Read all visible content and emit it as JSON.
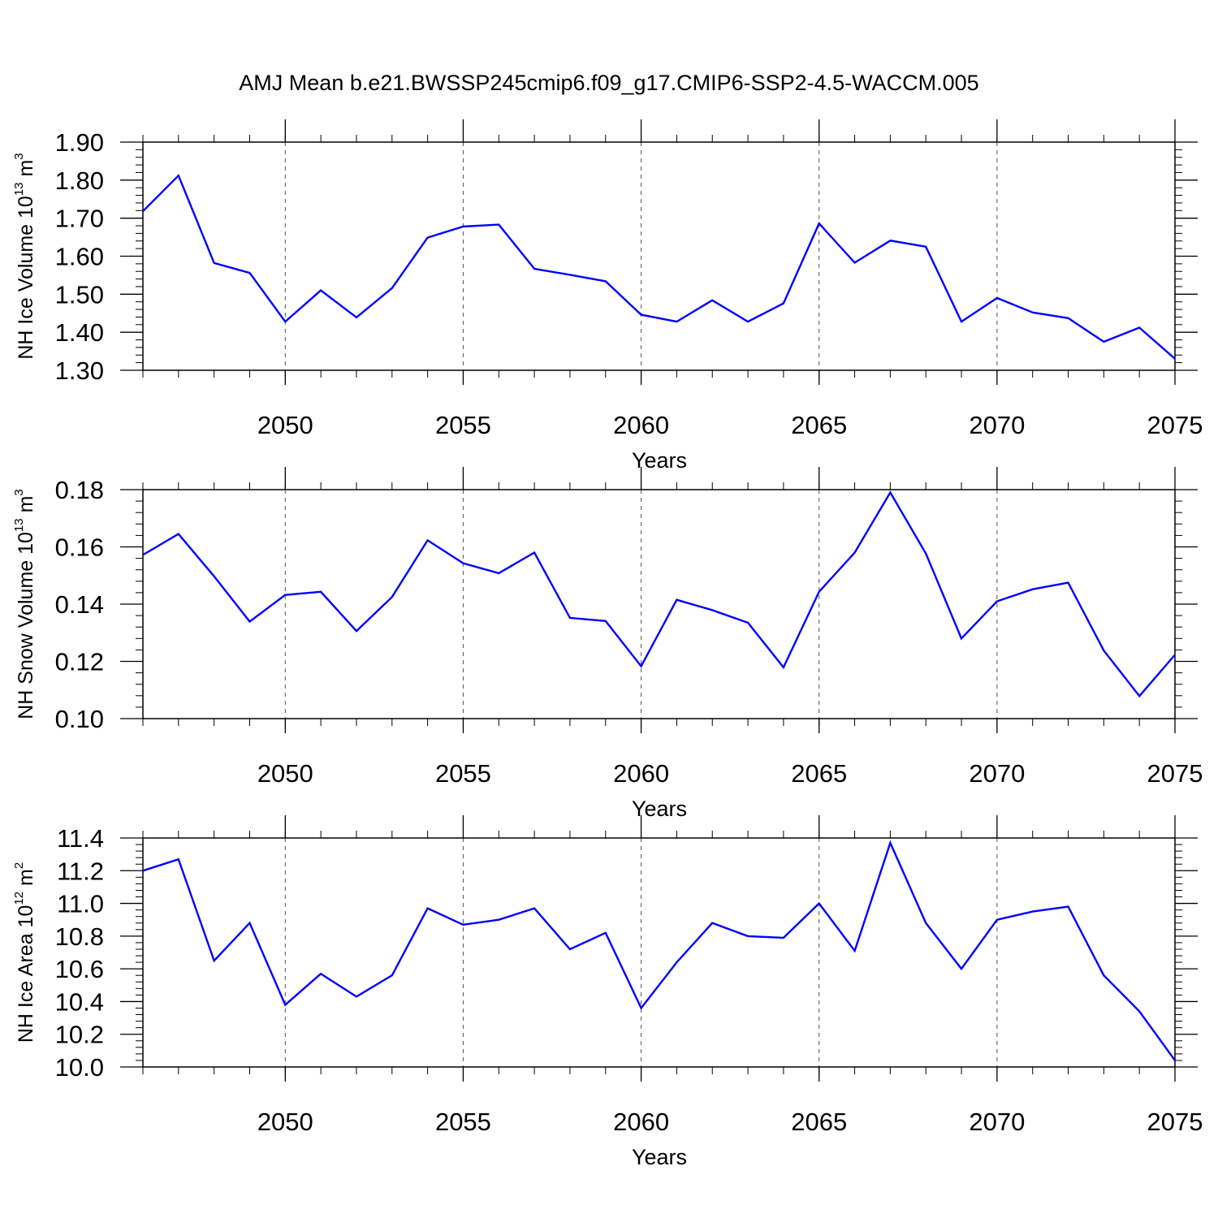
{
  "figure_title": "AMJ Mean b.e21.BWSSP245cmip6.f09_g17.CMIP6-SSP2-4.5-WACCM.005",
  "colors": {
    "line": "#0000ff",
    "axis": "#000000",
    "grid": "#555555"
  },
  "chart_data": [
    {
      "type": "line",
      "title": "AMJ Mean b.e21.BWSSP245cmip6.f09_g17.CMIP6-SSP2-4.5-WACCM.005",
      "xlabel": "Years",
      "ylabel_main": "NH Ice Volume 10",
      "ylabel_exp": "13",
      "ylabel_unit": " m",
      "ylabel_unit_exp": "3",
      "xlim": [
        2046,
        2075
      ],
      "ylim": [
        1.3,
        1.9
      ],
      "xticks": [
        "2050",
        "2055",
        "2060",
        "2065",
        "2070",
        "2075"
      ],
      "yticks": [
        "1.30",
        "1.40",
        "1.50",
        "1.60",
        "1.70",
        "1.80",
        "1.90"
      ],
      "x": [
        2046,
        2047,
        2048,
        2049,
        2050,
        2051,
        2052,
        2053,
        2054,
        2055,
        2056,
        2057,
        2058,
        2059,
        2060,
        2061,
        2062,
        2063,
        2064,
        2065,
        2066,
        2067,
        2068,
        2069,
        2070,
        2071,
        2072,
        2073,
        2074,
        2075
      ],
      "series": [
        {
          "name": "NH Ice Volume",
          "values": [
            1.718,
            1.812,
            1.582,
            1.556,
            1.428,
            1.51,
            1.439,
            1.516,
            1.649,
            1.678,
            1.683,
            1.567,
            1.551,
            1.534,
            1.446,
            1.428,
            1.484,
            1.428,
            1.476,
            1.686,
            1.583,
            1.641,
            1.625,
            1.428,
            1.49,
            1.452,
            1.437,
            1.375,
            1.412,
            1.33
          ]
        }
      ]
    },
    {
      "type": "line",
      "xlabel": "Years",
      "ylabel_main": "NH Snow Volume 10",
      "ylabel_exp": "13",
      "ylabel_unit": " m",
      "ylabel_unit_exp": "3",
      "xlim": [
        2046,
        2075
      ],
      "ylim": [
        0.1,
        0.18
      ],
      "xticks": [
        "2050",
        "2055",
        "2060",
        "2065",
        "2070",
        "2075"
      ],
      "yticks": [
        "0.10",
        "0.12",
        "0.14",
        "0.16",
        "0.18"
      ],
      "x": [
        2046,
        2047,
        2048,
        2049,
        2050,
        2051,
        2052,
        2053,
        2054,
        2055,
        2056,
        2057,
        2058,
        2059,
        2060,
        2061,
        2062,
        2063,
        2064,
        2065,
        2066,
        2067,
        2068,
        2069,
        2070,
        2071,
        2072,
        2073,
        2074,
        2075
      ],
      "series": [
        {
          "name": "NH Snow Volume",
          "values": [
            0.1572,
            0.1645,
            0.1497,
            0.1339,
            0.1432,
            0.1443,
            0.1306,
            0.1425,
            0.1623,
            0.1543,
            0.1508,
            0.158,
            0.1352,
            0.1341,
            0.1183,
            0.1415,
            0.1379,
            0.1335,
            0.1179,
            0.1443,
            0.158,
            0.179,
            0.1577,
            0.128,
            0.141,
            0.1452,
            0.1475,
            0.1238,
            0.1079,
            0.1223
          ]
        }
      ]
    },
    {
      "type": "line",
      "xlabel": "Years",
      "ylabel_main": "NH Ice Area 10",
      "ylabel_exp": "12",
      "ylabel_unit": " m",
      "ylabel_unit_exp": "2",
      "xlim": [
        2046,
        2075
      ],
      "ylim": [
        10.0,
        11.4
      ],
      "xticks": [
        "2050",
        "2055",
        "2060",
        "2065",
        "2070",
        "2075"
      ],
      "yticks": [
        "10.0",
        "10.2",
        "10.4",
        "10.6",
        "10.8",
        "11.0",
        "11.2",
        "11.4"
      ],
      "x": [
        2046,
        2047,
        2048,
        2049,
        2050,
        2051,
        2052,
        2053,
        2054,
        2055,
        2056,
        2057,
        2058,
        2059,
        2060,
        2061,
        2062,
        2063,
        2064,
        2065,
        2066,
        2067,
        2068,
        2069,
        2070,
        2071,
        2072,
        2073,
        2074,
        2075
      ],
      "series": [
        {
          "name": "NH Ice Area",
          "values": [
            11.2,
            11.27,
            10.65,
            10.88,
            10.38,
            10.57,
            10.43,
            10.56,
            10.97,
            10.87,
            10.9,
            10.97,
            10.72,
            10.82,
            10.36,
            10.64,
            10.88,
            10.8,
            10.79,
            11.0,
            10.71,
            11.37,
            10.88,
            10.6,
            10.9,
            10.95,
            10.98,
            10.56,
            10.34,
            10.04
          ]
        }
      ]
    }
  ]
}
